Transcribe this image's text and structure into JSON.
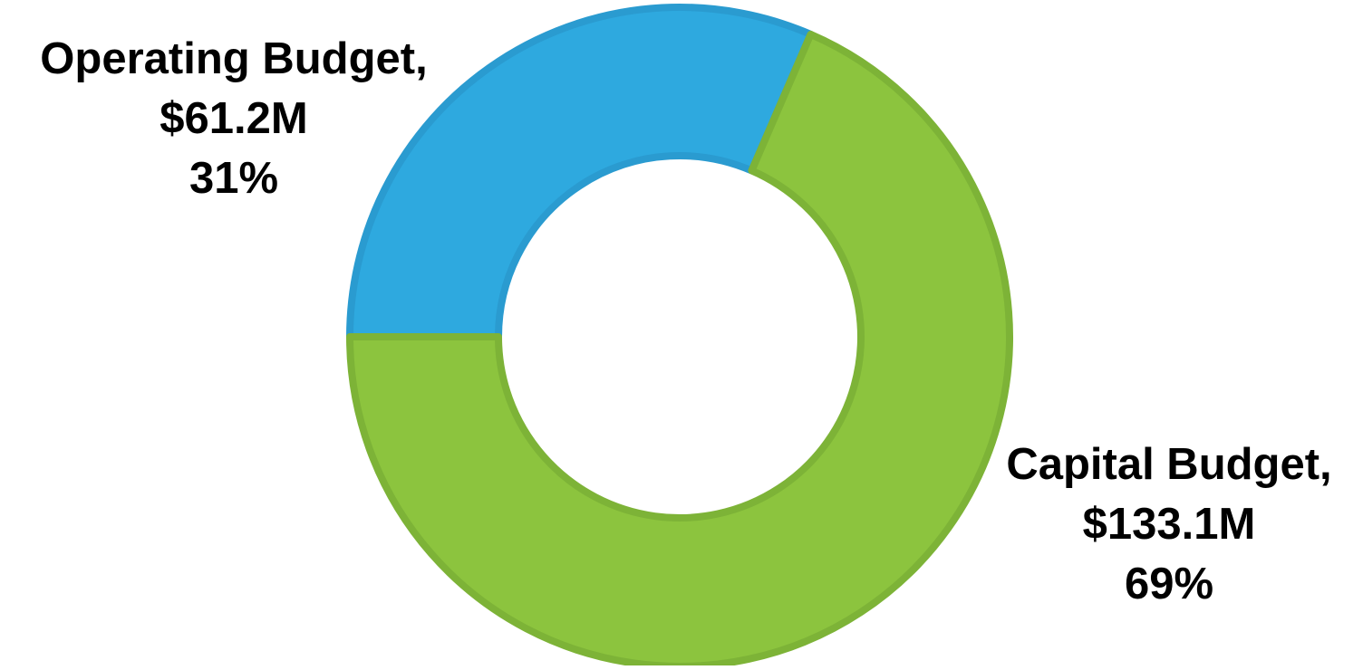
{
  "chart_data": {
    "type": "pie",
    "variant": "donut",
    "title": "",
    "series": [
      {
        "categories": [
          "Operating Budget",
          "Capital Budget"
        ],
        "values": [
          61.2,
          133.1
        ],
        "units": "$M",
        "percent": [
          31,
          69
        ],
        "colors": [
          "#2ea9df",
          "#8cc43e"
        ],
        "stroke_colors": [
          "#2a9bd0",
          "#7db337"
        ]
      }
    ],
    "labels": [
      {
        "name": "Operating Budget,",
        "value": "$61.2M",
        "percent": "31%"
      },
      {
        "name": "Capital Budget,",
        "value": "$133.1M",
        "percent": "69%"
      }
    ],
    "legend": "none",
    "start_angle": "left (9 o'clock), clockwise"
  }
}
